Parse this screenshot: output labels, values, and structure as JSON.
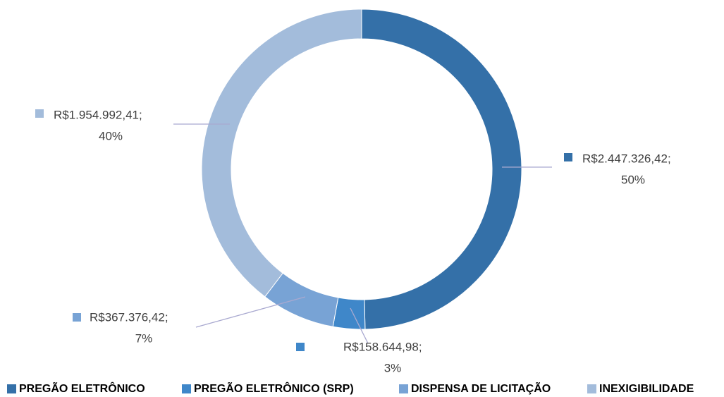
{
  "chart_data": {
    "type": "donut",
    "categories": [
      "PREGÃO ELETRÔNICO",
      "PREGÃO ELETRÔNICO (SRP)",
      "DISPENSA DE LICITAÇÃO",
      "INEXIGIBILIDADE"
    ],
    "values": [
      2447326.42,
      158644.98,
      367376.42,
      1954992.41
    ],
    "value_labels": [
      "R$2.447.326,42;",
      "R$158.644,98;",
      "R$367.376,42;",
      "R$1.954.992,41;"
    ],
    "percent_labels": [
      "50%",
      "3%",
      "7%",
      "40%"
    ],
    "colors": [
      "#3470a8",
      "#3f87c9",
      "#78a3d5",
      "#a3bcdb"
    ],
    "legend": "bottom"
  }
}
